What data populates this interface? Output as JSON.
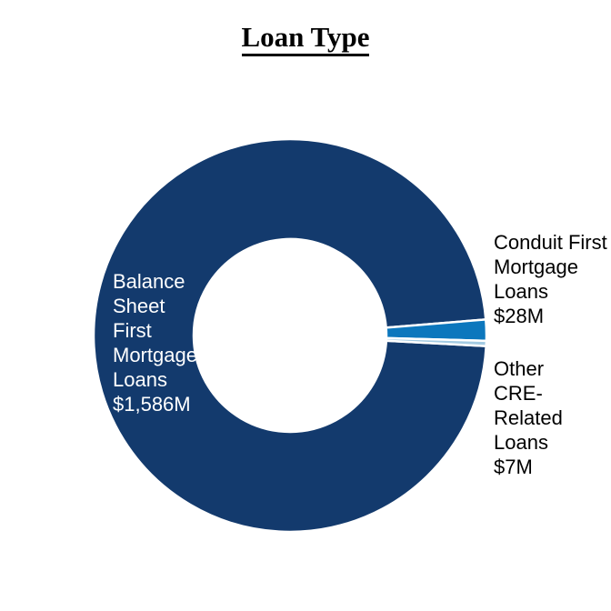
{
  "page": {
    "background_color": "#FFFFFF"
  },
  "chart_data": {
    "type": "pie",
    "subtype": "donut",
    "title": "Loan Type",
    "unit": "$M",
    "legend": "none",
    "direction": "clockwise",
    "start_angle_deg": 93.1,
    "gap_color": "#FFFFFF",
    "total_musd": 1621,
    "segments": [
      {
        "name": "Balance Sheet First Mortgage Loans",
        "value_musd": 1586,
        "label": "Balance\nSheet\nFirst\nMortgage\nLoans\n$1,586M",
        "color": "#133A6D",
        "label_color": "#FFFFFF"
      },
      {
        "name": "Conduit First Mortgage Loans",
        "value_musd": 28,
        "label": "Conduit First\nMortgage\nLoans\n$28M",
        "color": "#0C77BD",
        "label_color": "#000000"
      },
      {
        "name": "Other CRE-Related Loans",
        "value_musd": 7,
        "label": "Other\nCRE-Related\nLoans\n$7M",
        "color": "#A3CBE3",
        "label_color": "#000000"
      }
    ]
  }
}
